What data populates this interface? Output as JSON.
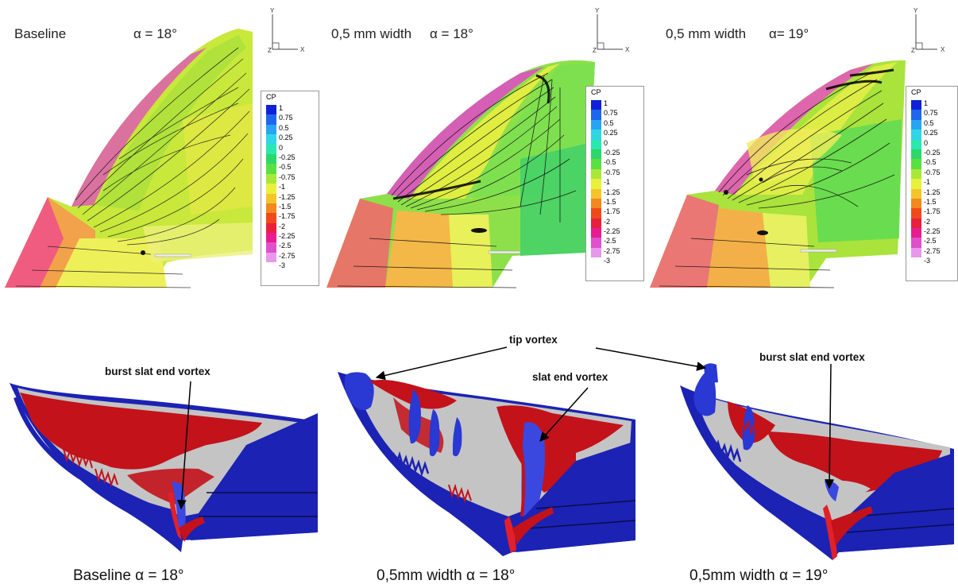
{
  "top_panels": [
    {
      "title_left": "Baseline",
      "title_alpha": "α = 18°"
    },
    {
      "title_left": "0,5 mm width",
      "title_alpha": "α = 18°"
    },
    {
      "title_left": "0,5 mm width",
      "title_alpha": "α= 19°"
    }
  ],
  "axes_triad": {
    "y_label": "Y",
    "x_label": "X",
    "z_label": "Z"
  },
  "legend": {
    "title": "CP",
    "levels": [
      "1",
      "0.75",
      "0.5",
      "0.25",
      "0",
      "-0.25",
      "-0.5",
      "-0.75",
      "-1",
      "-1.25",
      "-1.5",
      "-1.75",
      "-2",
      "-2.25",
      "-2.5",
      "-2.75",
      "-3"
    ],
    "colors": [
      "#1020d8",
      "#1e66ee",
      "#28a4f2",
      "#2fd6e6",
      "#29e8b0",
      "#2cd86a",
      "#59e041",
      "#a8e83a",
      "#e8f03a",
      "#f4c52a",
      "#f2881e",
      "#f04a1a",
      "#ea1f3e",
      "#e81c8e",
      "#e050cc",
      "#e898ea",
      "#ffffff"
    ]
  },
  "annotations": {
    "tip_vortex": "tip vortex",
    "slat_end_vortex": "slat end vortex",
    "burst_left": "burst slat end vortex",
    "burst_right": "burst slat end vortex"
  },
  "captions": [
    "Baseline  α = 18°",
    "0,5mm width  α = 18°",
    "0,5mm width  α = 19°"
  ],
  "iso_colors": {
    "blue": "#1c22b4",
    "red": "#c3121a",
    "grey": "#c3c3c3"
  }
}
